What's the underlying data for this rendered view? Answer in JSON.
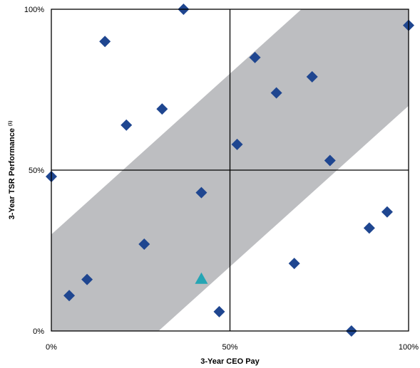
{
  "chart_data": {
    "type": "scatter",
    "xlabel": "3-Year CEO Pay",
    "ylabel": "3-Year TSR Performance",
    "ylabel_superscript": "(1)",
    "xlim": [
      0,
      100
    ],
    "ylim": [
      0,
      100
    ],
    "x_ticks": [
      {
        "value": 0,
        "label": "0%"
      },
      {
        "value": 50,
        "label": "50%"
      },
      {
        "value": 100,
        "label": "100%"
      }
    ],
    "y_ticks": [
      {
        "value": 0,
        "label": "0%"
      },
      {
        "value": 50,
        "label": "50%"
      },
      {
        "value": 100,
        "label": "100%"
      }
    ],
    "divider_lines": {
      "x": 50,
      "y": 50
    },
    "band": {
      "lower_line": [
        [
          30,
          0
        ],
        [
          100,
          70
        ]
      ],
      "upper_line": [
        [
          0,
          30
        ],
        [
          70,
          100
        ]
      ]
    },
    "colors": {
      "peer": "#1f4690",
      "company": "#25a5b4",
      "band": "#bdbec1",
      "lines": "#000000"
    },
    "series": [
      {
        "marker": "diamond",
        "points": [
          {
            "x": 0,
            "y": 48
          },
          {
            "x": 5,
            "y": 11
          },
          {
            "x": 10,
            "y": 16
          },
          {
            "x": 15,
            "y": 90
          },
          {
            "x": 21,
            "y": 64
          },
          {
            "x": 26,
            "y": 27
          },
          {
            "x": 31,
            "y": 69
          },
          {
            "x": 37,
            "y": 100
          },
          {
            "x": 42,
            "y": 43
          },
          {
            "x": 47,
            "y": 6
          },
          {
            "x": 52,
            "y": 58
          },
          {
            "x": 57,
            "y": 85
          },
          {
            "x": 63,
            "y": 74
          },
          {
            "x": 68,
            "y": 21
          },
          {
            "x": 73,
            "y": 79
          },
          {
            "x": 78,
            "y": 53
          },
          {
            "x": 84,
            "y": 0
          },
          {
            "x": 89,
            "y": 32
          },
          {
            "x": 94,
            "y": 37
          },
          {
            "x": 100,
            "y": 95
          }
        ]
      },
      {
        "marker": "triangle",
        "points": [
          {
            "x": 42,
            "y": 16
          }
        ]
      }
    ]
  }
}
